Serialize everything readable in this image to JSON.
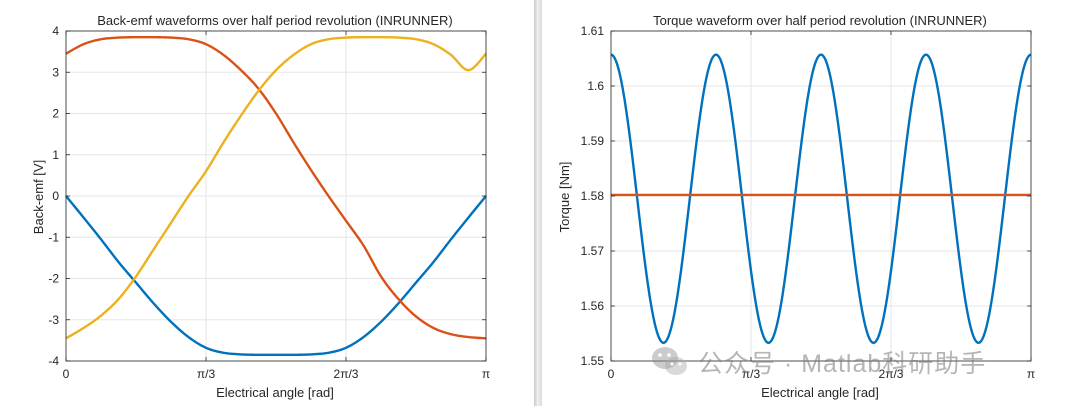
{
  "colors": {
    "blue": "#0072BD",
    "orange": "#D95319",
    "yellow": "#EDB120"
  },
  "watermark": {
    "text": "公众号 · Matlab科研助手",
    "logo": "wechat-icon"
  },
  "chart_data": [
    {
      "type": "line",
      "title": "Back-emf waveforms over half period revolution (INRUNNER)",
      "xlabel": "Electrical angle [rad]",
      "ylabel": "Back-emf [V]",
      "xlim": [
        0,
        3.14159
      ],
      "ylim": [
        -4,
        4
      ],
      "xticks": [
        0,
        1.0472,
        2.0944,
        3.14159
      ],
      "xticklabels": [
        "0",
        "π/3",
        "2π/3",
        "π"
      ],
      "yticks": [
        -4,
        -3,
        -2,
        -1,
        0,
        1,
        2,
        3,
        4
      ],
      "yticklabels": [
        "-4",
        "-3",
        "-2",
        "-1",
        "0",
        "1",
        "2",
        "3",
        "4"
      ],
      "grid": true,
      "series": [
        {
          "color": "#0072BD",
          "x": [
            0,
            0.1309,
            0.2618,
            0.3927,
            0.5236,
            0.6545,
            0.7854,
            0.9163,
            1.0472,
            1.1781,
            1.309,
            1.4399,
            1.5708,
            1.7017,
            1.8326,
            1.9635,
            2.0944,
            2.2253,
            2.3562,
            2.4871,
            2.618,
            2.7489,
            2.8798,
            3.0107,
            3.1416
          ],
          "y": [
            0,
            -0.52,
            -1.05,
            -1.6,
            -2.1,
            -2.6,
            -3.05,
            -3.42,
            -3.68,
            -3.8,
            -3.84,
            -3.85,
            -3.85,
            -3.85,
            -3.84,
            -3.8,
            -3.68,
            -3.42,
            -3.05,
            -2.6,
            -2.1,
            -1.6,
            -1.05,
            -0.52,
            0
          ]
        },
        {
          "color": "#D95319",
          "x": [
            0,
            0.1309,
            0.2618,
            0.3927,
            0.5236,
            0.6545,
            0.7854,
            0.9163,
            1.0472,
            1.1781,
            1.309,
            1.4399,
            1.5708,
            1.7017,
            1.8326,
            1.9635,
            2.0944,
            2.2253,
            2.3562,
            2.4871,
            2.618,
            2.7489,
            2.8798,
            3.0107,
            3.1416
          ],
          "y": [
            3.45,
            3.68,
            3.8,
            3.84,
            3.85,
            3.85,
            3.84,
            3.8,
            3.68,
            3.42,
            3.05,
            2.6,
            2.0,
            1.3,
            0.63,
            0.0,
            -0.6,
            -1.2,
            -1.95,
            -2.5,
            -2.92,
            -3.2,
            -3.35,
            -3.42,
            -3.45
          ]
        },
        {
          "color": "#EDB120",
          "x": [
            0,
            0.1309,
            0.2618,
            0.3927,
            0.5236,
            0.6545,
            0.7854,
            0.9163,
            1.0472,
            1.1781,
            1.309,
            1.4399,
            1.5708,
            1.7017,
            1.8326,
            1.9635,
            2.0944,
            2.2253,
            2.3562,
            2.4871,
            2.618,
            2.7489,
            2.8798,
            3.0107,
            3.1416
          ],
          "y": [
            -3.45,
            -3.2,
            -2.9,
            -2.5,
            -1.95,
            -1.3,
            -0.65,
            0.0,
            0.6,
            1.3,
            1.95,
            2.55,
            3.05,
            3.42,
            3.68,
            3.8,
            3.84,
            3.85,
            3.85,
            3.84,
            3.8,
            3.68,
            3.42,
            3.05,
            3.45
          ]
        }
      ]
    },
    {
      "type": "line",
      "title": "Torque waveform over half period revolution (INRUNNER)",
      "xlabel": "Electrical angle [rad]",
      "ylabel": "Torque [Nm]",
      "xlim": [
        0,
        3.14159
      ],
      "ylim": [
        1.55,
        1.61
      ],
      "xticks": [
        0,
        1.0472,
        2.0944,
        3.14159
      ],
      "xticklabels": [
        "0",
        "π/3",
        "2π/3",
        "π"
      ],
      "yticks": [
        1.55,
        1.56,
        1.57,
        1.58,
        1.59,
        1.6,
        1.61
      ],
      "yticklabels": [
        "1.55",
        "1.56",
        "1.57",
        "1.58",
        "1.59",
        "1.6",
        "1.61"
      ],
      "grid": true,
      "series": [
        {
          "color": "#0072BD",
          "function": "cosine",
          "mean": 1.5795,
          "amplitude": 0.0262,
          "periods": 4,
          "x": [
            0,
            0.2618,
            0.5236,
            0.7854,
            1.0472,
            1.309,
            1.5708,
            1.8326,
            2.0944,
            2.3562,
            2.618,
            2.8798,
            3.1416
          ],
          "y": [
            1.6057,
            1.5795,
            1.5533,
            1.5795,
            1.6057,
            1.5795,
            1.5533,
            1.5795,
            1.6057,
            1.5795,
            1.5533,
            1.5795,
            1.6057
          ]
        },
        {
          "color": "#D95319",
          "x": [
            0,
            3.14159
          ],
          "y": [
            1.5802,
            1.5802
          ]
        }
      ]
    }
  ]
}
